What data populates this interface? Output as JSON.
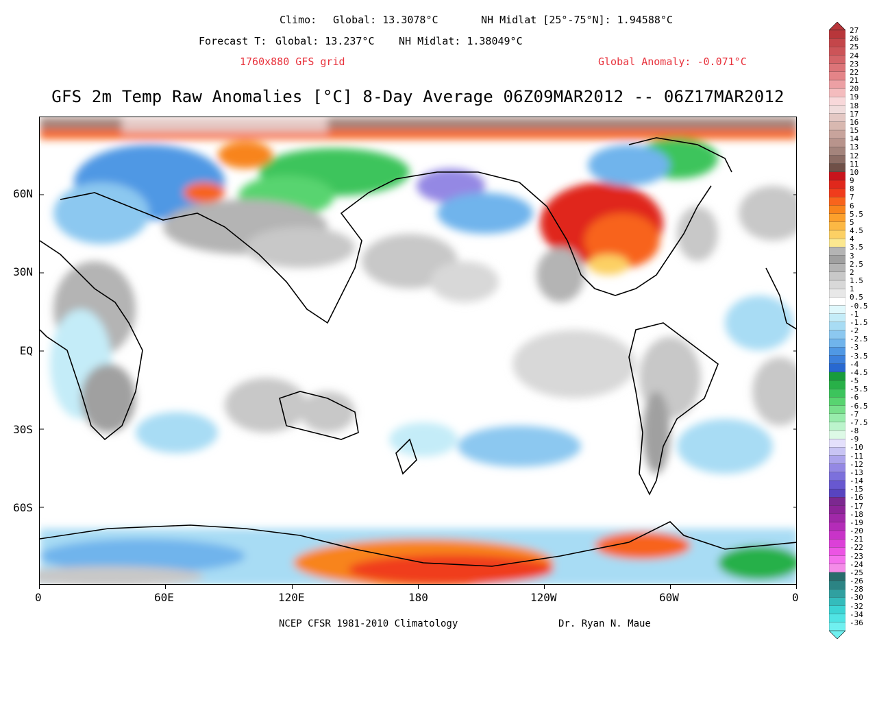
{
  "header": {
    "climo_label": "Climo:",
    "climo_global": "Global: 13.3078°C",
    "climo_nh": "NH Midlat [25°-75°N]: 1.94588°C",
    "forecast_label": "Forecast T:",
    "forecast_global": "Global: 13.237°C",
    "forecast_nh": "NH Midlat: 1.38049°C",
    "grid": "1760x880 GFS grid",
    "anomaly": "Global Anomaly: -0.071°C"
  },
  "title": "GFS 2m Temp Raw Anomalies [°C] 8-Day Average 06Z09MAR2012 -- 06Z17MAR2012",
  "axes": {
    "x_ticks": [
      "0",
      "60E",
      "120E",
      "180",
      "120W",
      "60W",
      "0"
    ],
    "y_ticks": [
      "60N",
      "30N",
      "EQ",
      "30S",
      "60S"
    ]
  },
  "footer": {
    "left": "NCEP CFSR 1981-2010 Climatology",
    "right": "Dr. Ryan N. Maue"
  },
  "colorbar": {
    "labels": [
      "27",
      "26",
      "25",
      "24",
      "23",
      "22",
      "21",
      "20",
      "19",
      "18",
      "17",
      "16",
      "15",
      "14",
      "13",
      "12",
      "11",
      "10",
      "9",
      "8",
      "7",
      "6",
      "5.5",
      "5",
      "4.5",
      "4",
      "3.5",
      "3",
      "2.5",
      "2",
      "1.5",
      "1",
      "0.5",
      "-0.5",
      "-1",
      "-1.5",
      "-2",
      "-2.5",
      "-3",
      "-3.5",
      "-4",
      "-4.5",
      "-5",
      "-5.5",
      "-6",
      "-6.5",
      "-7",
      "-7.5",
      "-8",
      "-9",
      "-10",
      "-11",
      "-12",
      "-13",
      "-14",
      "-15",
      "-16",
      "-17",
      "-18",
      "-19",
      "-20",
      "-21",
      "-22",
      "-23",
      "-24",
      "-25",
      "-26",
      "-28",
      "-30",
      "-32",
      "-34",
      "-36"
    ],
    "colors": [
      "#b8363a",
      "#c4464a",
      "#cc5458",
      "#d46468",
      "#dc7478",
      "#e48488",
      "#eca0a4",
      "#f4bcbe",
      "#f8d8da",
      "#f0dcdc",
      "#e4c8c4",
      "#d8b8b0",
      "#c8a49c",
      "#b8948c",
      "#a4847c",
      "#8c6c64",
      "#705048",
      "#c8141c",
      "#e0281c",
      "#f03c1c",
      "#f8641c",
      "#f8841c",
      "#fca02c",
      "#fcb844",
      "#fcd064",
      "#fce890",
      "#b4b4b4",
      "#a0a0a0",
      "#b4b4b4",
      "#c8c8c8",
      "#d8d8d8",
      "#e8e8e8",
      "#ffffff",
      "#e0f8fc",
      "#c4ecf8",
      "#a8dcf4",
      "#8cc8f0",
      "#70b4ec",
      "#5098e4",
      "#3c80dc",
      "#2868d0",
      "#189c3c",
      "#28b048",
      "#3cc45c",
      "#58d470",
      "#78e08c",
      "#98ecac",
      "#bcf4cc",
      "#ddf9e6",
      "#e4e0fc",
      "#c8c4f4",
      "#aca4ec",
      "#9488e4",
      "#7c70dc",
      "#6858d0",
      "#5844c0",
      "#7c2890",
      "#8c2498",
      "#a028a8",
      "#b42cb8",
      "#c834c8",
      "#dc40d8",
      "#ec54e4",
      "#f470ec",
      "#f48ce8",
      "#286c6c",
      "#2c8484",
      "#30a0a0",
      "#34bcbc",
      "#3cd4d4",
      "#50e4e4",
      "#70f0f0"
    ]
  },
  "map_colors": {
    "ocean": "#ffffff",
    "coast": "#000000",
    "warm_top": "#f8841c",
    "brown": "#a4847c",
    "green": "#3cc45c",
    "blue": "#3c80dc",
    "lightblue": "#a8dcf4",
    "gray": "#b4b4b4",
    "orange": "#f8641c",
    "red": "#e0281c"
  }
}
